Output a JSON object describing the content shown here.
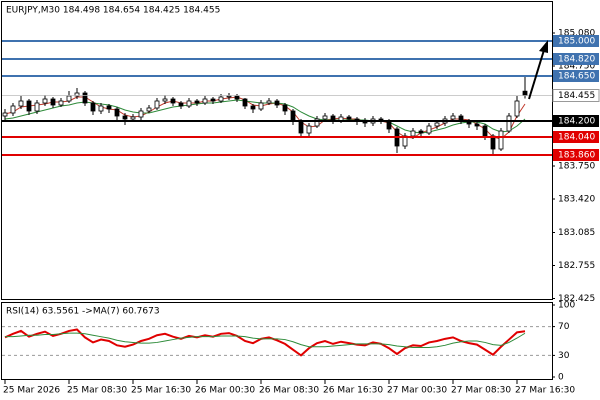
{
  "chart_data": [
    {
      "type": "candlestick",
      "title": "EURJPY,M30 184.498 184.654 184.425 184.455",
      "categories": [
        "25 Mar 2026",
        null,
        null,
        null,
        null,
        null,
        null,
        null,
        "25 Mar 08:30",
        null,
        null,
        null,
        null,
        null,
        null,
        null,
        "25 Mar 16:30",
        null,
        null,
        null,
        null,
        null,
        null,
        null,
        "26 Mar 00:30",
        null,
        null,
        null,
        null,
        null,
        null,
        null,
        "26 Mar 08:30",
        null,
        null,
        null,
        null,
        null,
        null,
        null,
        "26 Mar 16:30",
        null,
        null,
        null,
        null,
        null,
        null,
        null,
        "27 Mar 00:30",
        null,
        null,
        null,
        null,
        null,
        null,
        null,
        "27 Mar 08:30",
        null,
        null,
        null,
        null,
        null,
        null,
        null,
        "27 Mar 16:30",
        null
      ],
      "open": [
        184.25,
        184.28,
        184.35,
        184.4,
        184.3,
        184.38,
        184.42,
        184.36,
        184.4,
        184.45,
        184.48,
        184.38,
        184.3,
        184.35,
        184.32,
        184.25,
        184.22,
        184.24,
        184.3,
        184.33,
        184.4,
        184.42,
        184.38,
        184.35,
        184.4,
        184.38,
        184.42,
        184.4,
        184.44,
        184.45,
        184.42,
        184.35,
        184.32,
        184.38,
        184.4,
        184.36,
        184.3,
        184.2,
        184.08,
        184.15,
        184.22,
        184.25,
        184.2,
        184.24,
        184.22,
        184.2,
        184.18,
        184.22,
        184.2,
        184.12,
        183.95,
        184.05,
        184.1,
        184.08,
        184.15,
        184.18,
        184.22,
        184.25,
        184.2,
        184.17,
        184.15,
        184.05,
        183.92,
        184.1,
        184.25,
        184.498
      ],
      "high": [
        184.32,
        184.38,
        184.45,
        184.42,
        184.41,
        184.46,
        184.44,
        184.43,
        184.5,
        184.53,
        184.5,
        184.4,
        184.38,
        184.37,
        184.34,
        184.28,
        184.27,
        184.33,
        184.36,
        184.43,
        184.46,
        184.44,
        184.4,
        184.43,
        184.42,
        184.45,
        184.44,
        184.47,
        184.48,
        184.47,
        184.43,
        184.37,
        184.41,
        184.43,
        184.42,
        184.38,
        184.32,
        184.22,
        184.18,
        184.25,
        184.28,
        184.27,
        184.27,
        184.26,
        184.24,
        184.23,
        184.25,
        184.24,
        184.22,
        184.14,
        184.08,
        184.13,
        184.12,
        184.18,
        184.21,
        184.25,
        184.28,
        184.27,
        184.22,
        184.19,
        184.17,
        184.07,
        184.13,
        184.28,
        184.45,
        184.654
      ],
      "low": [
        184.2,
        184.25,
        184.32,
        184.26,
        184.27,
        184.35,
        184.33,
        184.34,
        184.38,
        184.42,
        184.35,
        184.26,
        184.27,
        184.28,
        184.2,
        184.16,
        184.19,
        184.21,
        184.28,
        184.31,
        184.37,
        184.35,
        184.32,
        184.33,
        184.35,
        184.36,
        184.37,
        184.38,
        184.41,
        184.39,
        184.32,
        184.28,
        184.3,
        184.36,
        184.33,
        184.26,
        184.16,
        184.03,
        184.05,
        184.13,
        184.19,
        184.17,
        184.18,
        184.19,
        184.16,
        184.14,
        184.15,
        184.17,
        184.08,
        183.88,
        183.92,
        184.02,
        184.04,
        184.06,
        184.12,
        184.15,
        184.19,
        184.17,
        184.13,
        184.11,
        184.01,
        183.87,
        183.9,
        184.08,
        184.23,
        184.425
      ],
      "close": [
        184.28,
        184.35,
        184.4,
        184.3,
        184.38,
        184.42,
        184.36,
        184.4,
        184.45,
        184.48,
        184.38,
        184.3,
        184.35,
        184.32,
        184.25,
        184.22,
        184.24,
        184.3,
        184.33,
        184.4,
        184.42,
        184.38,
        184.35,
        184.4,
        184.38,
        184.42,
        184.4,
        184.44,
        184.45,
        184.42,
        184.35,
        184.32,
        184.38,
        184.4,
        184.36,
        184.3,
        184.2,
        184.08,
        184.15,
        184.22,
        184.25,
        184.2,
        184.24,
        184.22,
        184.2,
        184.18,
        184.22,
        184.2,
        184.12,
        183.95,
        184.05,
        184.1,
        184.08,
        184.15,
        184.18,
        184.22,
        184.25,
        184.2,
        184.17,
        184.15,
        184.05,
        183.92,
        184.1,
        184.25,
        184.4,
        184.455
      ],
      "up_color": "#ffffff",
      "down_color": "#000000",
      "wick_color": "#000000",
      "overlays": [
        {
          "color": "#c0392b",
          "values": [
            184.27,
            184.29,
            184.34,
            184.35,
            184.36,
            184.37,
            184.39,
            184.39,
            184.4,
            184.44,
            184.44,
            184.39,
            184.34,
            184.32,
            184.31,
            184.26,
            184.24,
            184.25,
            184.29,
            184.34,
            184.38,
            184.4,
            184.38,
            184.38,
            184.38,
            184.4,
            184.4,
            184.42,
            184.43,
            184.44,
            184.41,
            184.36,
            184.35,
            184.37,
            184.38,
            184.35,
            184.29,
            184.19,
            184.14,
            184.15,
            184.21,
            184.22,
            184.23,
            184.22,
            184.22,
            184.2,
            184.2,
            184.2,
            184.18,
            184.09,
            184.04,
            184.03,
            184.08,
            184.11,
            184.14,
            184.18,
            184.22,
            184.22,
            184.21,
            184.17,
            184.12,
            184.04,
            184.02,
            184.09,
            184.25,
            184.37
          ]
        },
        {
          "color": "#2e8b3a",
          "values": [
            184.22,
            184.23,
            184.25,
            184.27,
            184.29,
            184.31,
            184.33,
            184.35,
            184.36,
            184.38,
            184.39,
            184.38,
            184.37,
            184.36,
            184.34,
            184.31,
            184.29,
            184.28,
            184.28,
            184.3,
            184.32,
            184.34,
            184.35,
            184.36,
            184.37,
            184.38,
            184.38,
            184.39,
            184.4,
            184.41,
            184.4,
            184.39,
            184.38,
            184.38,
            184.38,
            184.37,
            184.34,
            184.29,
            184.25,
            184.22,
            184.21,
            184.21,
            184.21,
            184.21,
            184.21,
            184.21,
            184.2,
            184.2,
            184.19,
            184.15,
            184.11,
            184.09,
            184.08,
            184.09,
            184.11,
            184.13,
            184.16,
            184.18,
            184.19,
            184.19,
            184.17,
            184.12,
            184.09,
            184.1,
            184.15,
            184.22
          ]
        }
      ],
      "levels": [
        {
          "value": 185.0,
          "label": "185.000",
          "color": "#3f72af"
        },
        {
          "value": 184.82,
          "label": "184.820",
          "color": "#3f72af"
        },
        {
          "value": 184.65,
          "label": "184.650",
          "color": "#3f72af"
        },
        {
          "value": 184.2,
          "label": "184.200",
          "color": "#000000"
        },
        {
          "value": 184.04,
          "label": "184.040",
          "color": "#e00000"
        },
        {
          "value": 183.86,
          "label": "183.860",
          "color": "#e00000"
        }
      ],
      "ylim": [
        182.41,
        185.41
      ],
      "yticks": [
        {
          "value": 185.08,
          "label": "185.080"
        },
        {
          "value": 184.75,
          "label": "184.750"
        },
        {
          "value": 183.75,
          "label": "183.750"
        },
        {
          "value": 183.42,
          "label": "183.420"
        },
        {
          "value": 183.085,
          "label": "183.085"
        },
        {
          "value": 182.755,
          "label": "182.755"
        },
        {
          "value": 182.425,
          "label": "182.425"
        }
      ]
    },
    {
      "type": "line",
      "title": "RSI(14) 63.5561 ->MA(7) 60.7673",
      "series": [
        {
          "color": "#e00000",
          "values": [
            55,
            60,
            64,
            56,
            60,
            63,
            57,
            60,
            64,
            66,
            55,
            48,
            52,
            50,
            44,
            42,
            45,
            50,
            53,
            58,
            60,
            56,
            53,
            57,
            55,
            58,
            56,
            60,
            61,
            57,
            50,
            47,
            53,
            55,
            51,
            46,
            38,
            30,
            40,
            47,
            50,
            46,
            49,
            47,
            45,
            44,
            48,
            46,
            40,
            32,
            40,
            44,
            43,
            48,
            50,
            53,
            55,
            50,
            47,
            45,
            38,
            31,
            42,
            52,
            62,
            63.5561
          ]
        },
        {
          "color": "#2e8b3a",
          "values": [
            56,
            56,
            57,
            58,
            58,
            59,
            59,
            60,
            61,
            61,
            60,
            58,
            56,
            54,
            51,
            49,
            48,
            47,
            47,
            48,
            50,
            52,
            54,
            55,
            56,
            56,
            56,
            57,
            57,
            57,
            56,
            54,
            53,
            53,
            53,
            52,
            49,
            45,
            42,
            42,
            42,
            43,
            44,
            45,
            46,
            46,
            46,
            46,
            45,
            43,
            42,
            41,
            41,
            41,
            42,
            44,
            47,
            49,
            50,
            50,
            48,
            45,
            44,
            48,
            54,
            60.7673
          ]
        }
      ],
      "ylim": [
        0,
        100
      ],
      "yticks": [
        100,
        70,
        30,
        0
      ]
    }
  ]
}
